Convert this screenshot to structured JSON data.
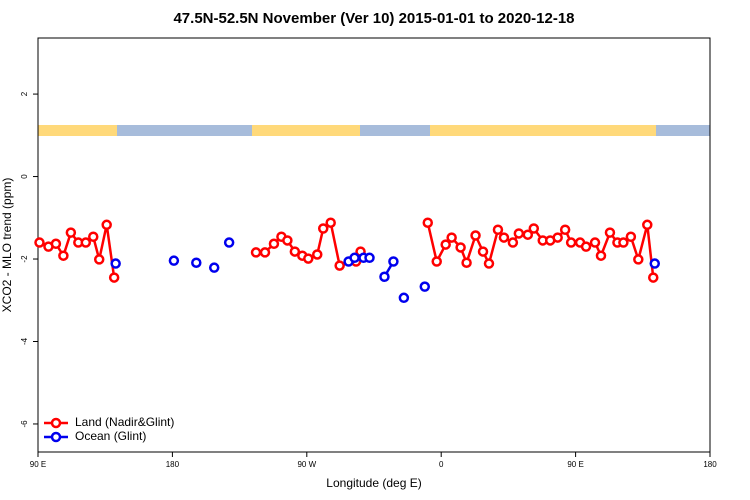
{
  "chart_data": {
    "type": "line",
    "title": "47.5N-52.5N November (Ver 10)   2015-01-01 to 2020-12-18",
    "xlabel": "Longitude (deg E)",
    "ylabel": "XCO2 - MLO trend (ppm)",
    "xlim": [
      -270,
      180
    ],
    "ylim": [
      -6.68,
      3.36
    ],
    "xticks": [
      {
        "value": -270,
        "label": "90 E"
      },
      {
        "value": -180,
        "label": "180"
      },
      {
        "value": -90,
        "label": "90 W"
      },
      0,
      {
        "value": 90,
        "label": "90 E"
      },
      180
    ],
    "yticks": [
      2,
      0,
      -2,
      -4,
      -6
    ],
    "legend": "bottom-left",
    "series": [
      {
        "name": "Land (Nadir&Glint)",
        "color": "#ff0000",
        "x": [
          -269,
          -263,
          -258,
          -253,
          -248,
          -243,
          -238,
          -233,
          -229,
          -224,
          -219,
          null,
          -124,
          -118,
          -112,
          -107,
          -103,
          -98,
          -93,
          -89,
          -83,
          -79,
          -74,
          -68,
          -57,
          -54,
          null,
          -9,
          -3,
          3,
          7,
          13,
          17,
          23,
          28,
          32,
          38,
          42,
          48,
          52,
          58,
          62,
          68,
          73,
          78,
          83,
          87,
          93,
          97,
          103,
          107,
          113,
          118,
          122,
          127,
          132,
          138,
          142
        ],
        "values": [
          -1.6,
          -1.7,
          -1.63,
          -1.92,
          -1.36,
          -1.6,
          -1.6,
          -1.46,
          -2.01,
          -1.17,
          -2.45,
          null,
          -1.84,
          -1.84,
          -1.63,
          -1.46,
          -1.55,
          -1.82,
          -1.92,
          -1.99,
          -1.89,
          -1.26,
          -1.12,
          -2.16,
          -2.06,
          -1.82,
          null,
          -1.12,
          -2.06,
          -1.65,
          -1.48,
          -1.72,
          -2.09,
          -1.43,
          -1.82,
          -2.11,
          -1.29,
          -1.48,
          -1.6,
          -1.38,
          -1.41,
          -1.26,
          -1.55,
          -1.55,
          -1.48,
          -1.29,
          -1.6,
          -1.6,
          -1.7,
          -1.6,
          -1.92,
          -1.36,
          -1.6,
          -1.6,
          -1.46,
          -2.01,
          -1.17,
          -2.45
        ]
      },
      {
        "name": "Ocean (Glint)",
        "color": "#0000ee",
        "x": [
          -218,
          null,
          -179,
          null,
          -164,
          null,
          -152,
          null,
          -142,
          null,
          -62,
          -58,
          -52,
          -48,
          null,
          -38,
          -32,
          null,
          -25,
          null,
          -11,
          null,
          143
        ],
        "values": [
          -2.11,
          null,
          -2.04,
          null,
          -2.09,
          null,
          -2.21,
          null,
          -1.6,
          null,
          -2.06,
          -1.97,
          -1.97,
          -1.97,
          null,
          -2.43,
          -2.06,
          null,
          -2.94,
          null,
          -2.67,
          null,
          -2.11
        ]
      }
    ]
  }
}
